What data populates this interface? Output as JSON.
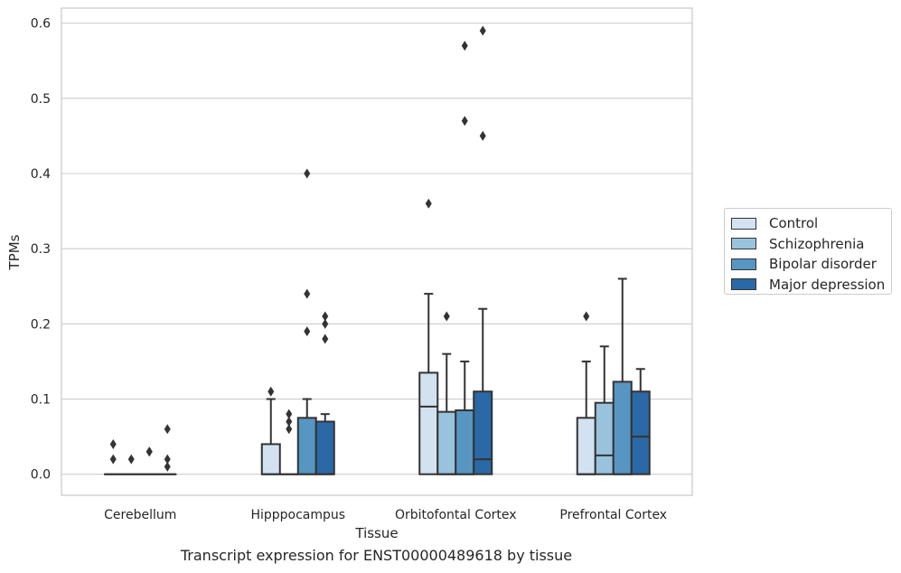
{
  "chart_data": {
    "type": "box",
    "title": "",
    "caption": "Transcript expression for ENST00000489618 by tissue",
    "xlabel": "Tissue",
    "ylabel": "TPMs",
    "ylim": [
      -0.028,
      0.62
    ],
    "yticks": [
      0.0,
      0.1,
      0.2,
      0.3,
      0.4,
      0.5,
      0.6
    ],
    "ytick_labels": [
      "0.0",
      "0.1",
      "0.2",
      "0.3",
      "0.4",
      "0.5",
      "0.6"
    ],
    "grid": "horizontal",
    "legend_position": "right",
    "categories": [
      "Cerebellum",
      "Hipppocampus",
      "Orbitofontal Cortex",
      "Prefrontal Cortex"
    ],
    "series": [
      {
        "name": "Control",
        "color": "#d3e2f1",
        "boxes": [
          {
            "q1": 0,
            "median": 0,
            "q3": 0,
            "whisker_low": 0,
            "whisker_high": 0,
            "outliers": [
              0.04,
              0.02
            ]
          },
          {
            "q1": 0,
            "median": 0,
            "q3": 0.04,
            "whisker_low": 0,
            "whisker_high": 0.1,
            "outliers": [
              0.11
            ]
          },
          {
            "q1": 0,
            "median": 0.09,
            "q3": 0.135,
            "whisker_low": 0,
            "whisker_high": 0.24,
            "outliers": [
              0.36
            ]
          },
          {
            "q1": 0,
            "median": 0,
            "q3": 0.075,
            "whisker_low": 0,
            "whisker_high": 0.15,
            "outliers": [
              0.21
            ]
          }
        ]
      },
      {
        "name": "Schizophrenia",
        "color": "#99c2dd",
        "boxes": [
          {
            "q1": 0,
            "median": 0,
            "q3": 0,
            "whisker_low": 0,
            "whisker_high": 0,
            "outliers": [
              0.02
            ]
          },
          {
            "q1": 0,
            "median": 0,
            "q3": 0,
            "whisker_low": 0,
            "whisker_high": 0,
            "outliers": [
              0.08,
              0.07,
              0.06
            ]
          },
          {
            "q1": 0,
            "median": 0,
            "q3": 0.083,
            "whisker_low": 0,
            "whisker_high": 0.16,
            "outliers": [
              0.21
            ]
          },
          {
            "q1": 0,
            "median": 0.025,
            "q3": 0.095,
            "whisker_low": 0,
            "whisker_high": 0.17,
            "outliers": []
          }
        ]
      },
      {
        "name": "Bipolar disorder",
        "color": "#5795c3",
        "boxes": [
          {
            "q1": 0,
            "median": 0,
            "q3": 0,
            "whisker_low": 0,
            "whisker_high": 0,
            "outliers": [
              0.03,
              0.03
            ]
          },
          {
            "q1": 0,
            "median": 0,
            "q3": 0.075,
            "whisker_low": 0,
            "whisker_high": 0.1,
            "outliers": [
              0.4,
              0.24,
              0.19
            ]
          },
          {
            "q1": 0,
            "median": 0,
            "q3": 0.085,
            "whisker_low": 0,
            "whisker_high": 0.15,
            "outliers": [
              0.57,
              0.47
            ]
          },
          {
            "q1": 0,
            "median": 0,
            "q3": 0.123,
            "whisker_low": 0,
            "whisker_high": 0.26,
            "outliers": []
          }
        ]
      },
      {
        "name": "Major depression",
        "color": "#2a68a6",
        "boxes": [
          {
            "q1": 0,
            "median": 0,
            "q3": 0,
            "whisker_low": 0,
            "whisker_high": 0,
            "outliers": [
              0.06,
              0.02,
              0.01
            ]
          },
          {
            "q1": 0,
            "median": 0,
            "q3": 0.07,
            "whisker_low": 0,
            "whisker_high": 0.08,
            "outliers": [
              0.21,
              0.2,
              0.18
            ]
          },
          {
            "q1": 0,
            "median": 0.02,
            "q3": 0.11,
            "whisker_low": 0,
            "whisker_high": 0.22,
            "outliers": [
              0.59,
              0.45
            ]
          },
          {
            "q1": 0,
            "median": 0.05,
            "q3": 0.11,
            "whisker_low": 0,
            "whisker_high": 0.14,
            "outliers": []
          }
        ]
      }
    ]
  }
}
